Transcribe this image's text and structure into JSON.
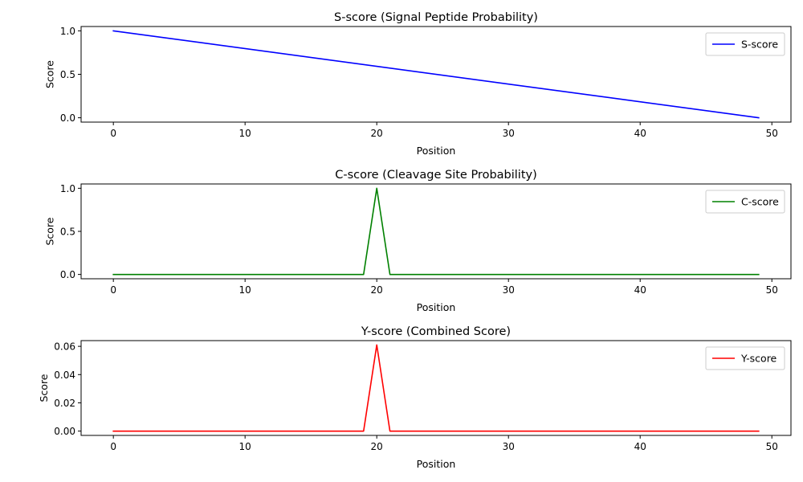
{
  "chart_data": [
    {
      "type": "line",
      "title": "S-score (Signal Peptide Probability)",
      "xlabel": "Position",
      "ylabel": "Score",
      "xlim": [
        -2.45,
        51.45
      ],
      "ylim": [
        -0.05,
        1.05
      ],
      "xticks": [
        0,
        10,
        20,
        30,
        40,
        50
      ],
      "yticks": [
        0.0,
        0.5,
        1.0
      ],
      "ytick_labels": [
        "0.0",
        "0.5",
        "1.0"
      ],
      "grid": false,
      "legend": "upper-right",
      "series": [
        {
          "name": "S-score",
          "color": "#0000ff",
          "x": [
            0,
            49
          ],
          "y": [
            1.0,
            0.0
          ]
        }
      ]
    },
    {
      "type": "line",
      "title": "C-score (Cleavage Site Probability)",
      "xlabel": "Position",
      "ylabel": "Score",
      "xlim": [
        -2.45,
        51.45
      ],
      "ylim": [
        -0.05,
        1.05
      ],
      "xticks": [
        0,
        10,
        20,
        30,
        40,
        50
      ],
      "yticks": [
        0.0,
        0.5,
        1.0
      ],
      "ytick_labels": [
        "0.0",
        "0.5",
        "1.0"
      ],
      "grid": false,
      "legend": "upper-right",
      "series": [
        {
          "name": "C-score",
          "color": "#008000",
          "x": [
            0,
            19,
            20,
            21,
            49
          ],
          "y": [
            0,
            0,
            1,
            0,
            0
          ]
        }
      ]
    },
    {
      "type": "line",
      "title": "Y-score (Combined Score)",
      "xlabel": "Position",
      "ylabel": "Score",
      "xlim": [
        -2.45,
        51.45
      ],
      "ylim": [
        -0.00305,
        0.06405
      ],
      "xticks": [
        0,
        10,
        20,
        30,
        40,
        50
      ],
      "yticks": [
        0.0,
        0.02,
        0.04,
        0.06
      ],
      "ytick_labels": [
        "0.00",
        "0.02",
        "0.04",
        "0.06"
      ],
      "grid": false,
      "legend": "upper-right",
      "series": [
        {
          "name": "Y-score",
          "color": "#ff0000",
          "x": [
            0,
            19,
            20,
            21,
            49
          ],
          "y": [
            0,
            0,
            0.061,
            0,
            0
          ]
        }
      ]
    }
  ]
}
